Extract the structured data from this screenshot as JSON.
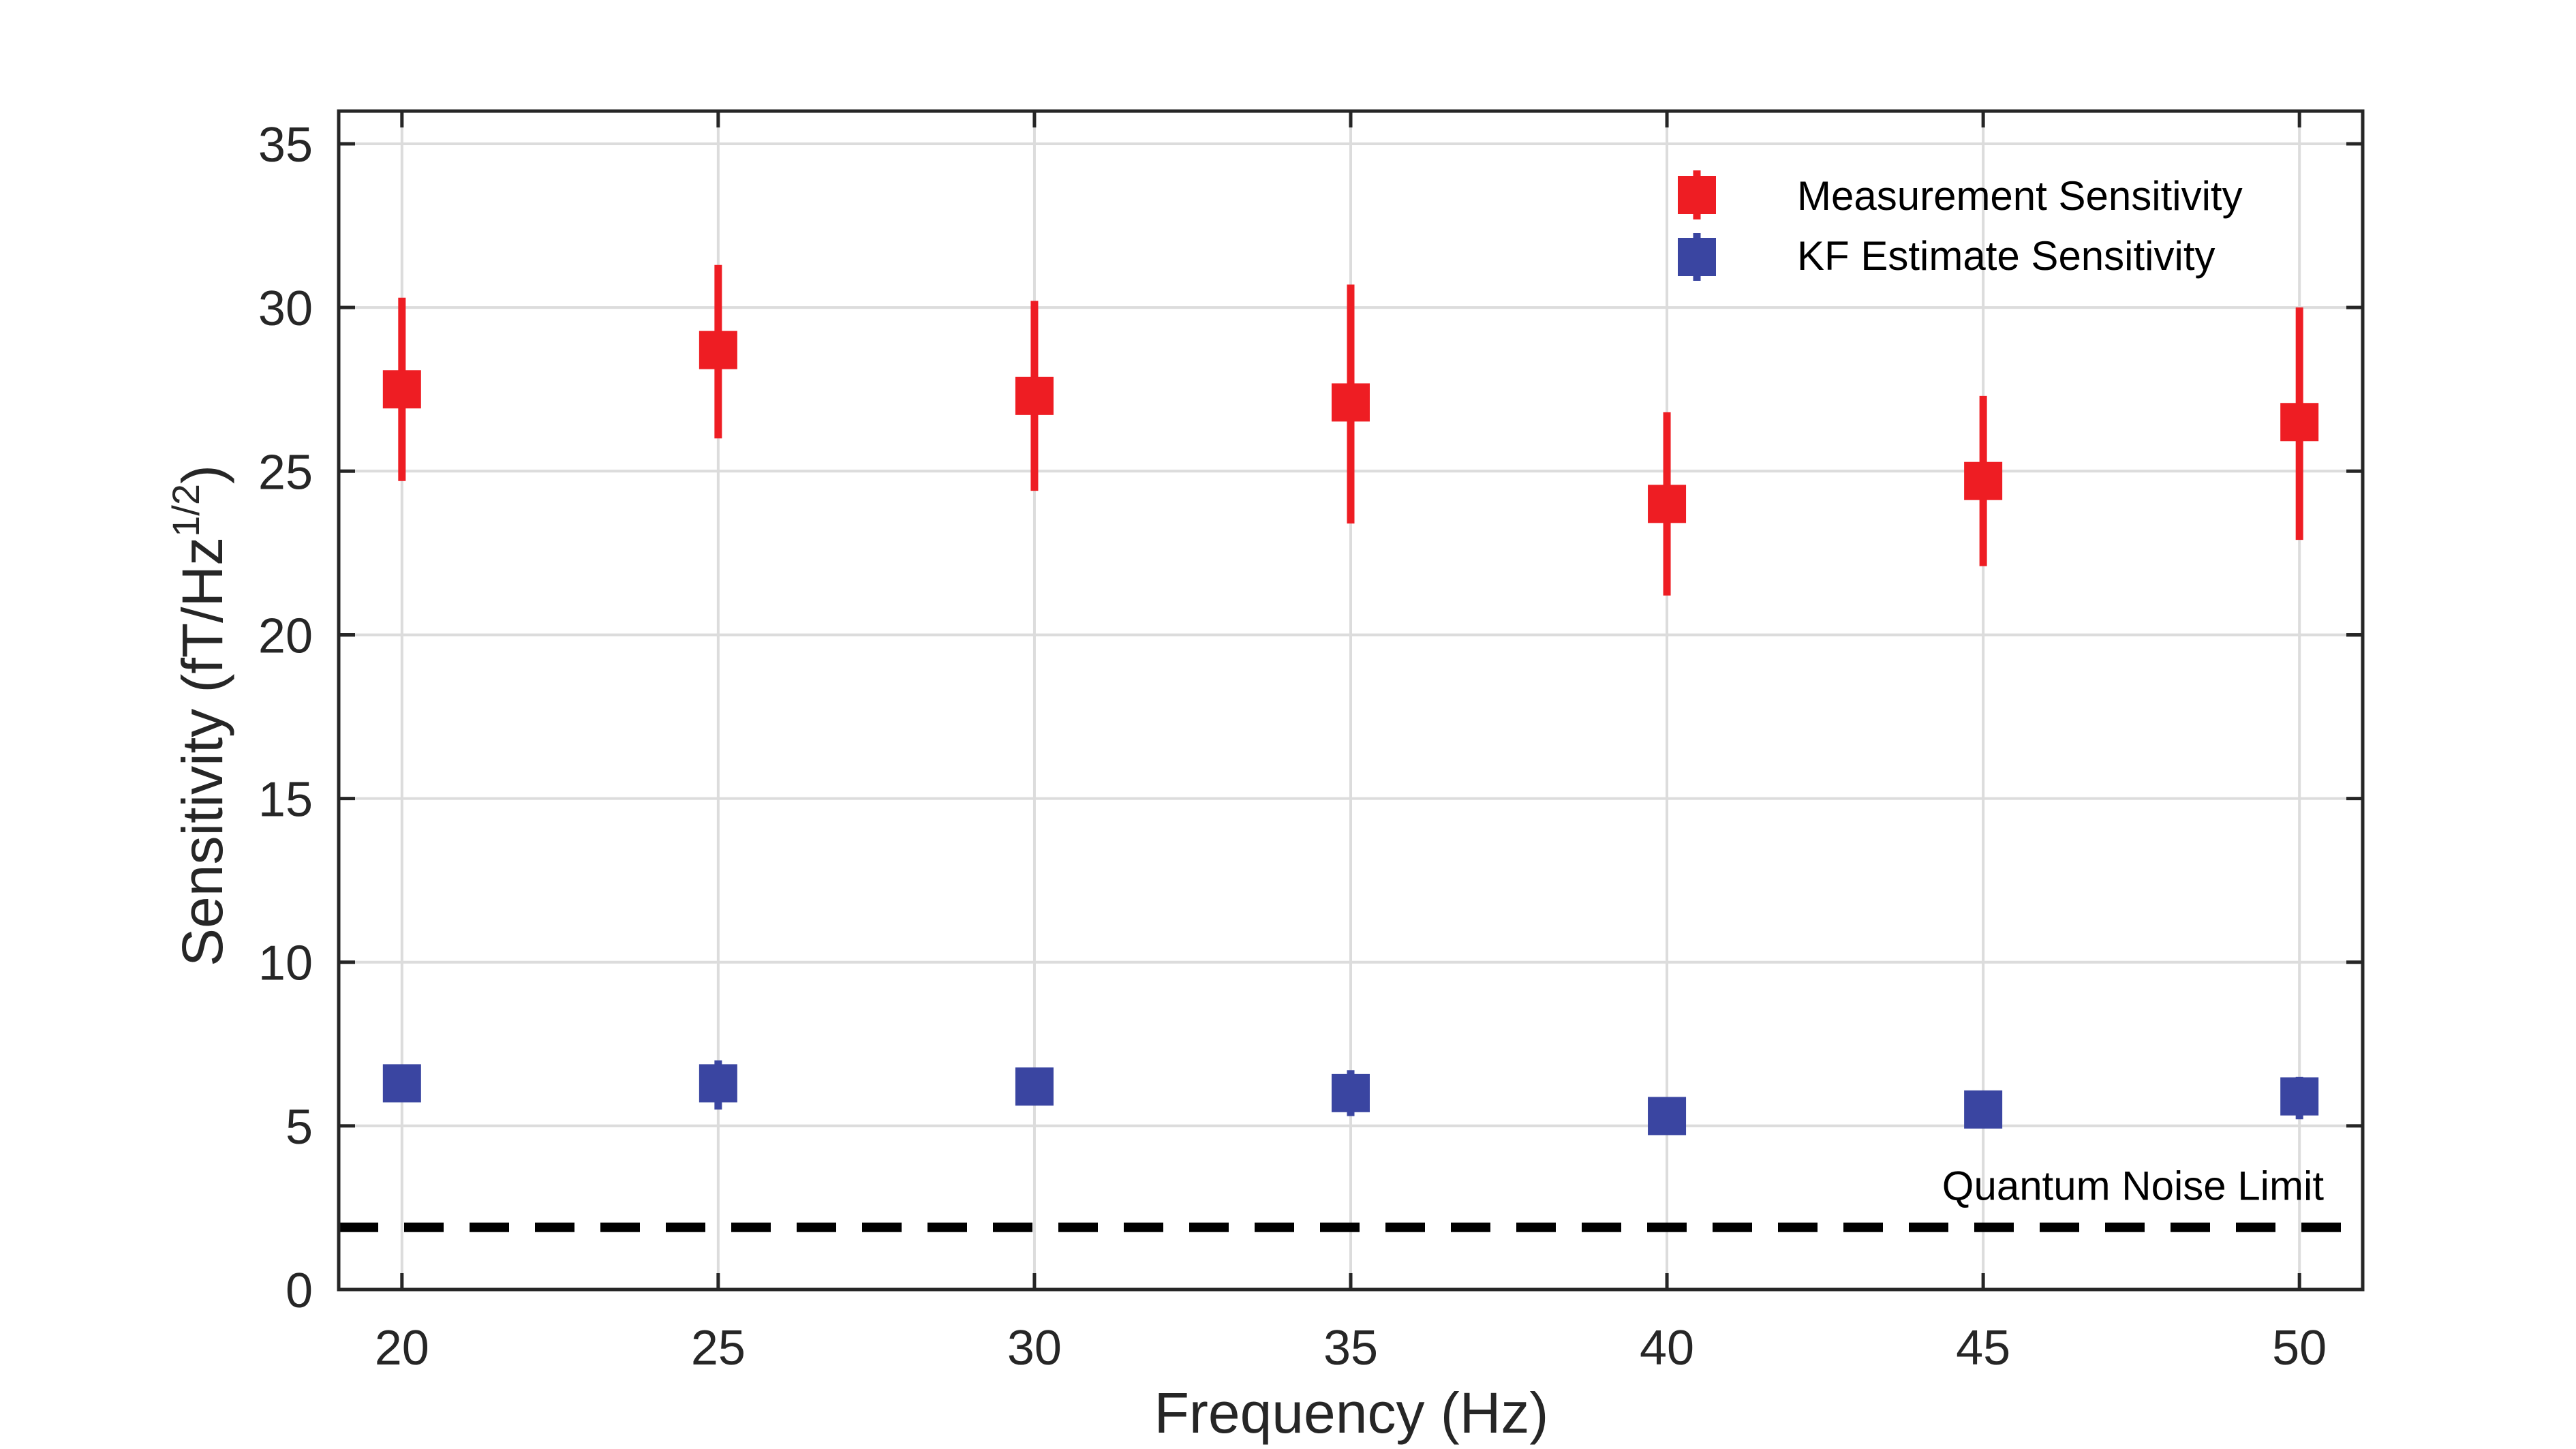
{
  "chart_data": {
    "type": "scatter",
    "xlabel": "Frequency (Hz)",
    "ylabel": "Sensitivity (fT/Hz",
    "ylabel_superscript": "1/2",
    "ylabel_suffix": ")",
    "xlim": [
      19,
      51
    ],
    "ylim": [
      0,
      36
    ],
    "xticks": [
      20,
      25,
      30,
      35,
      40,
      45,
      50
    ],
    "yticks": [
      0,
      5,
      10,
      15,
      20,
      25,
      30,
      35
    ],
    "grid": true,
    "legend_position": "top-right",
    "series": [
      {
        "name": "Measurement Sensitivity",
        "color": "#ee1d23",
        "marker": "square",
        "points": [
          {
            "x": 20,
            "y": 27.5,
            "ylow": 24.7,
            "yhigh": 30.3
          },
          {
            "x": 25,
            "y": 28.7,
            "ylow": 26.0,
            "yhigh": 31.3
          },
          {
            "x": 30,
            "y": 27.3,
            "ylow": 24.4,
            "yhigh": 30.2
          },
          {
            "x": 35,
            "y": 27.1,
            "ylow": 23.4,
            "yhigh": 30.7
          },
          {
            "x": 40,
            "y": 24.0,
            "ylow": 21.2,
            "yhigh": 26.8
          },
          {
            "x": 45,
            "y": 24.7,
            "ylow": 22.1,
            "yhigh": 27.3
          },
          {
            "x": 50,
            "y": 26.5,
            "ylow": 22.9,
            "yhigh": 30.0
          }
        ]
      },
      {
        "name": "KF Estimate Sensitivity",
        "color": "#3a45a1",
        "marker": "square",
        "points": [
          {
            "x": 20,
            "y": 6.3,
            "ylow": 5.9,
            "yhigh": 6.7
          },
          {
            "x": 25,
            "y": 6.3,
            "ylow": 5.5,
            "yhigh": 7.0
          },
          {
            "x": 30,
            "y": 6.2,
            "ylow": 5.8,
            "yhigh": 6.6
          },
          {
            "x": 35,
            "y": 6.0,
            "ylow": 5.3,
            "yhigh": 6.7
          },
          {
            "x": 40,
            "y": 5.3,
            "ylow": 4.8,
            "yhigh": 5.8
          },
          {
            "x": 45,
            "y": 5.5,
            "ylow": 5.2,
            "yhigh": 5.8
          },
          {
            "x": 50,
            "y": 5.9,
            "ylow": 5.2,
            "yhigh": 6.5
          }
        ]
      }
    ],
    "reference_line": {
      "label": "Quantum Noise Limit",
      "y": 1.9,
      "style": "dashed",
      "color": "#000000"
    }
  }
}
